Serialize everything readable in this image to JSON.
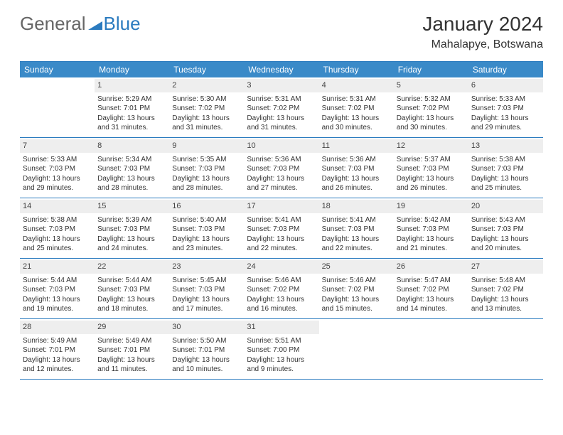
{
  "logo": {
    "text1": "General",
    "text2": "Blue"
  },
  "title": "January 2024",
  "location": "Mahalapye, Botswana",
  "day_headers": [
    "Sunday",
    "Monday",
    "Tuesday",
    "Wednesday",
    "Thursday",
    "Friday",
    "Saturday"
  ],
  "colors": {
    "header_bg": "#3a8ac8",
    "border": "#2b7bbf",
    "daynum_bg": "#eeeeee"
  },
  "weeks": [
    [
      {
        "empty": true
      },
      {
        "num": "1",
        "sunrise": "Sunrise: 5:29 AM",
        "sunset": "Sunset: 7:01 PM",
        "day1": "Daylight: 13 hours",
        "day2": "and 31 minutes."
      },
      {
        "num": "2",
        "sunrise": "Sunrise: 5:30 AM",
        "sunset": "Sunset: 7:02 PM",
        "day1": "Daylight: 13 hours",
        "day2": "and 31 minutes."
      },
      {
        "num": "3",
        "sunrise": "Sunrise: 5:31 AM",
        "sunset": "Sunset: 7:02 PM",
        "day1": "Daylight: 13 hours",
        "day2": "and 31 minutes."
      },
      {
        "num": "4",
        "sunrise": "Sunrise: 5:31 AM",
        "sunset": "Sunset: 7:02 PM",
        "day1": "Daylight: 13 hours",
        "day2": "and 30 minutes."
      },
      {
        "num": "5",
        "sunrise": "Sunrise: 5:32 AM",
        "sunset": "Sunset: 7:02 PM",
        "day1": "Daylight: 13 hours",
        "day2": "and 30 minutes."
      },
      {
        "num": "6",
        "sunrise": "Sunrise: 5:33 AM",
        "sunset": "Sunset: 7:03 PM",
        "day1": "Daylight: 13 hours",
        "day2": "and 29 minutes."
      }
    ],
    [
      {
        "num": "7",
        "sunrise": "Sunrise: 5:33 AM",
        "sunset": "Sunset: 7:03 PM",
        "day1": "Daylight: 13 hours",
        "day2": "and 29 minutes."
      },
      {
        "num": "8",
        "sunrise": "Sunrise: 5:34 AM",
        "sunset": "Sunset: 7:03 PM",
        "day1": "Daylight: 13 hours",
        "day2": "and 28 minutes."
      },
      {
        "num": "9",
        "sunrise": "Sunrise: 5:35 AM",
        "sunset": "Sunset: 7:03 PM",
        "day1": "Daylight: 13 hours",
        "day2": "and 28 minutes."
      },
      {
        "num": "10",
        "sunrise": "Sunrise: 5:36 AM",
        "sunset": "Sunset: 7:03 PM",
        "day1": "Daylight: 13 hours",
        "day2": "and 27 minutes."
      },
      {
        "num": "11",
        "sunrise": "Sunrise: 5:36 AM",
        "sunset": "Sunset: 7:03 PM",
        "day1": "Daylight: 13 hours",
        "day2": "and 26 minutes."
      },
      {
        "num": "12",
        "sunrise": "Sunrise: 5:37 AM",
        "sunset": "Sunset: 7:03 PM",
        "day1": "Daylight: 13 hours",
        "day2": "and 26 minutes."
      },
      {
        "num": "13",
        "sunrise": "Sunrise: 5:38 AM",
        "sunset": "Sunset: 7:03 PM",
        "day1": "Daylight: 13 hours",
        "day2": "and 25 minutes."
      }
    ],
    [
      {
        "num": "14",
        "sunrise": "Sunrise: 5:38 AM",
        "sunset": "Sunset: 7:03 PM",
        "day1": "Daylight: 13 hours",
        "day2": "and 25 minutes."
      },
      {
        "num": "15",
        "sunrise": "Sunrise: 5:39 AM",
        "sunset": "Sunset: 7:03 PM",
        "day1": "Daylight: 13 hours",
        "day2": "and 24 minutes."
      },
      {
        "num": "16",
        "sunrise": "Sunrise: 5:40 AM",
        "sunset": "Sunset: 7:03 PM",
        "day1": "Daylight: 13 hours",
        "day2": "and 23 minutes."
      },
      {
        "num": "17",
        "sunrise": "Sunrise: 5:41 AM",
        "sunset": "Sunset: 7:03 PM",
        "day1": "Daylight: 13 hours",
        "day2": "and 22 minutes."
      },
      {
        "num": "18",
        "sunrise": "Sunrise: 5:41 AM",
        "sunset": "Sunset: 7:03 PM",
        "day1": "Daylight: 13 hours",
        "day2": "and 22 minutes."
      },
      {
        "num": "19",
        "sunrise": "Sunrise: 5:42 AM",
        "sunset": "Sunset: 7:03 PM",
        "day1": "Daylight: 13 hours",
        "day2": "and 21 minutes."
      },
      {
        "num": "20",
        "sunrise": "Sunrise: 5:43 AM",
        "sunset": "Sunset: 7:03 PM",
        "day1": "Daylight: 13 hours",
        "day2": "and 20 minutes."
      }
    ],
    [
      {
        "num": "21",
        "sunrise": "Sunrise: 5:44 AM",
        "sunset": "Sunset: 7:03 PM",
        "day1": "Daylight: 13 hours",
        "day2": "and 19 minutes."
      },
      {
        "num": "22",
        "sunrise": "Sunrise: 5:44 AM",
        "sunset": "Sunset: 7:03 PM",
        "day1": "Daylight: 13 hours",
        "day2": "and 18 minutes."
      },
      {
        "num": "23",
        "sunrise": "Sunrise: 5:45 AM",
        "sunset": "Sunset: 7:03 PM",
        "day1": "Daylight: 13 hours",
        "day2": "and 17 minutes."
      },
      {
        "num": "24",
        "sunrise": "Sunrise: 5:46 AM",
        "sunset": "Sunset: 7:02 PM",
        "day1": "Daylight: 13 hours",
        "day2": "and 16 minutes."
      },
      {
        "num": "25",
        "sunrise": "Sunrise: 5:46 AM",
        "sunset": "Sunset: 7:02 PM",
        "day1": "Daylight: 13 hours",
        "day2": "and 15 minutes."
      },
      {
        "num": "26",
        "sunrise": "Sunrise: 5:47 AM",
        "sunset": "Sunset: 7:02 PM",
        "day1": "Daylight: 13 hours",
        "day2": "and 14 minutes."
      },
      {
        "num": "27",
        "sunrise": "Sunrise: 5:48 AM",
        "sunset": "Sunset: 7:02 PM",
        "day1": "Daylight: 13 hours",
        "day2": "and 13 minutes."
      }
    ],
    [
      {
        "num": "28",
        "sunrise": "Sunrise: 5:49 AM",
        "sunset": "Sunset: 7:01 PM",
        "day1": "Daylight: 13 hours",
        "day2": "and 12 minutes."
      },
      {
        "num": "29",
        "sunrise": "Sunrise: 5:49 AM",
        "sunset": "Sunset: 7:01 PM",
        "day1": "Daylight: 13 hours",
        "day2": "and 11 minutes."
      },
      {
        "num": "30",
        "sunrise": "Sunrise: 5:50 AM",
        "sunset": "Sunset: 7:01 PM",
        "day1": "Daylight: 13 hours",
        "day2": "and 10 minutes."
      },
      {
        "num": "31",
        "sunrise": "Sunrise: 5:51 AM",
        "sunset": "Sunset: 7:00 PM",
        "day1": "Daylight: 13 hours",
        "day2": "and 9 minutes."
      },
      {
        "empty": true
      },
      {
        "empty": true
      },
      {
        "empty": true
      }
    ]
  ]
}
